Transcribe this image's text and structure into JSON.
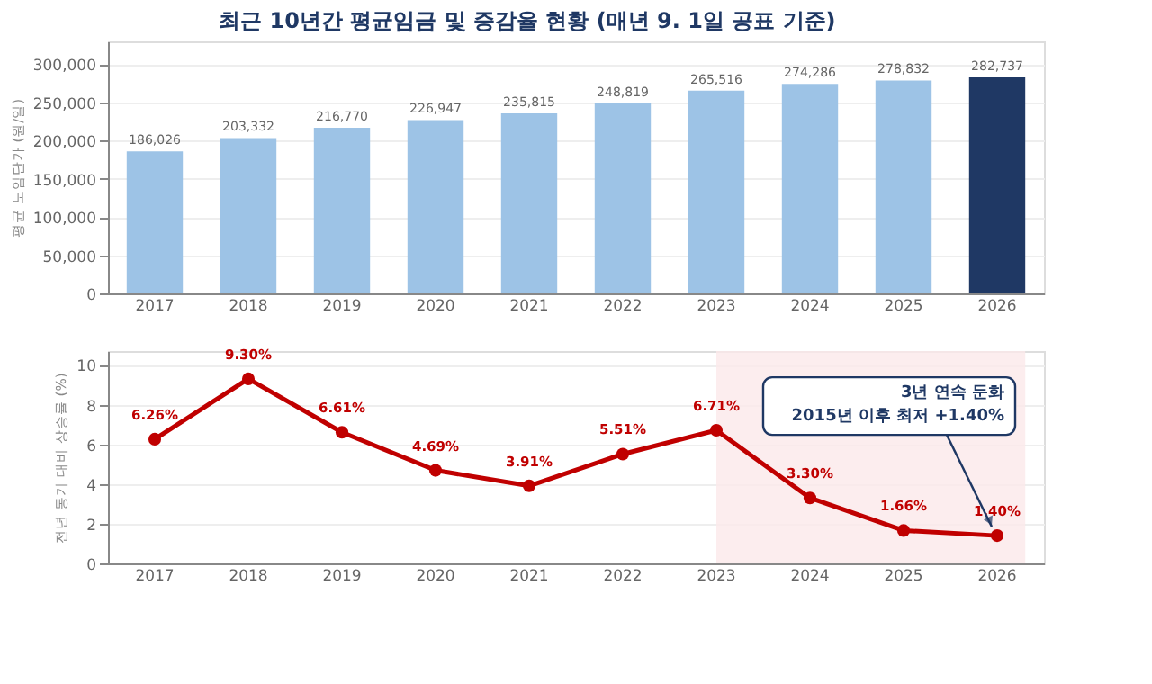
{
  "chart_data": [
    {
      "type": "bar",
      "title": "최근 10년간 평균임금 및 증감율 현황 (매년 9. 1일 공표 기준)",
      "ylabel": "평균 노임단가 (원/일)",
      "categories": [
        "2017",
        "2018",
        "2019",
        "2020",
        "2021",
        "2022",
        "2023",
        "2024",
        "2025",
        "2026"
      ],
      "values": [
        186026,
        203332,
        216770,
        226947,
        235815,
        248819,
        265516,
        274286,
        278832,
        282737
      ],
      "colors": [
        "#9dc3e6",
        "#9dc3e6",
        "#9dc3e6",
        "#9dc3e6",
        "#9dc3e6",
        "#9dc3e6",
        "#9dc3e6",
        "#9dc3e6",
        "#9dc3e6",
        "#1f3864"
      ],
      "value_labels": [
        "186,026",
        "203,332",
        "216,770",
        "226,947",
        "235,815",
        "248,819",
        "265,516",
        "274,286",
        "278,832",
        "282,737"
      ],
      "ylim": [
        0,
        330000
      ],
      "yticks": [
        0,
        {
          "value": 50000,
          "label": "50,000"
        },
        {
          "value": 100000,
          "label": "100,000"
        },
        {
          "value": 150000,
          "label": "150,000"
        },
        {
          "value": 200000,
          "label": "200,000"
        },
        {
          "value": 250000,
          "label": "250,000"
        },
        {
          "value": 300000,
          "label": "300,000"
        }
      ],
      "grid": "y"
    },
    {
      "type": "line",
      "ylabel": "전년 동기 대비 상승률 (%)",
      "categories": [
        "2017",
        "2018",
        "2019",
        "2020",
        "2021",
        "2022",
        "2023",
        "2024",
        "2025",
        "2026"
      ],
      "series": [
        {
          "color": "#c00000",
          "values": [
            6.26,
            9.3,
            6.61,
            4.69,
            3.91,
            5.51,
            6.71,
            3.3,
            1.66,
            1.4
          ],
          "value_labels": [
            "6.26%",
            "9.30%",
            "6.61%",
            "4.69%",
            "3.91%",
            "5.51%",
            "6.71%",
            "3.30%",
            "1.66%",
            "1.40%"
          ]
        }
      ],
      "ylim": [
        0,
        10.7
      ],
      "yticks": [
        0,
        2,
        4,
        6,
        8,
        10
      ],
      "grid": "y",
      "marker": "circle",
      "line_style": "solid",
      "bands": [
        {
          "axis": "x",
          "from": "2023",
          "to": "2026",
          "color": "#fbe9ea"
        }
      ],
      "annotations": [
        {
          "text": "3년 연속 둔화\n2015년 이후 최저 +1.40%",
          "x": "2026",
          "y": 1.4
        }
      ]
    }
  ]
}
